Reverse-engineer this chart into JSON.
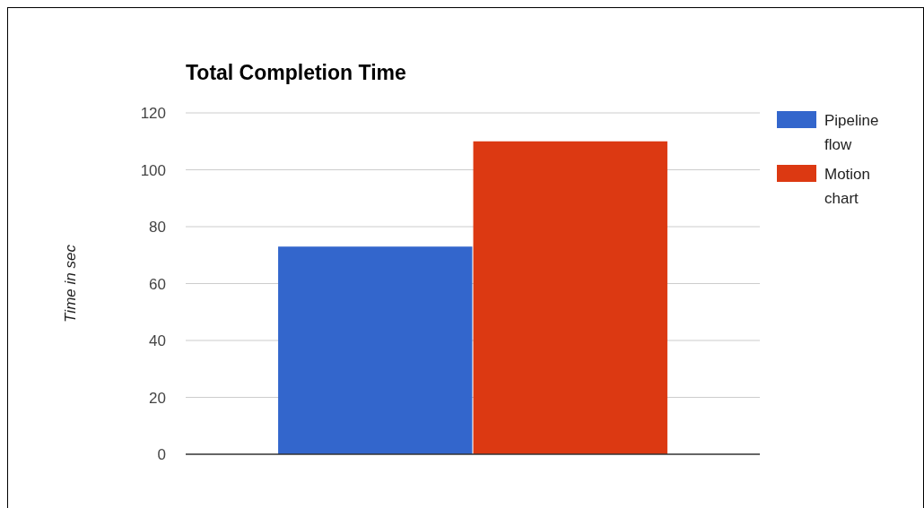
{
  "chart_data": {
    "type": "bar",
    "title": "Total Completion Time",
    "ylabel": "Time in sec",
    "categories": [
      null
    ],
    "series": [
      {
        "name": "Pipeline flow",
        "color": "#3366cc",
        "values": [
          73
        ]
      },
      {
        "name": "Motion chart",
        "color": "#dc3912",
        "values": [
          110
        ]
      }
    ],
    "ylim": [
      0,
      120
    ],
    "yticks": [
      0,
      20,
      40,
      60,
      80,
      100,
      120
    ],
    "grid": "y",
    "legend": "right"
  }
}
